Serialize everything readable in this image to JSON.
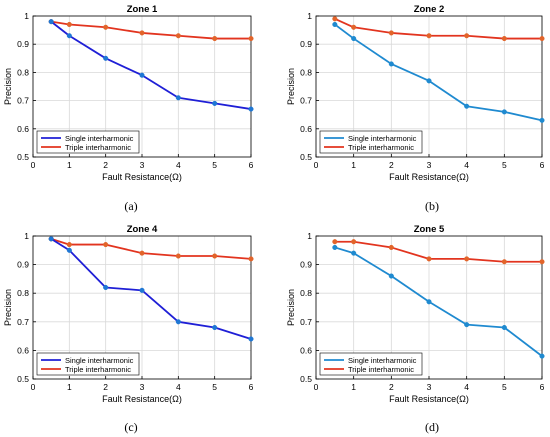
{
  "colors": {
    "single_ab": "#1f1fd6",
    "single_b": "#1f8ad0",
    "triple": "#e2341f",
    "marker_single_ab": "#1f77d4",
    "marker_single_b": "#1f8ad0",
    "marker_triple": "#e2642a",
    "grid": "#d9d9d9",
    "axis": "#000000"
  },
  "chart_data": [
    {
      "type": "line",
      "title": "Zone 1",
      "caption": "(a)",
      "xlabel": "Fault Resistance(Ω)",
      "ylabel": "Precision",
      "xlim": [
        0,
        6
      ],
      "ylim": [
        0.5,
        1
      ],
      "xticks": [
        "0",
        "1",
        "2",
        "3",
        "4",
        "5",
        "6"
      ],
      "yticks": [
        "0.5",
        "0.6",
        "0.7",
        "0.8",
        "0.9",
        "1"
      ],
      "grid": true,
      "legend": "bottom-left",
      "x": [
        0.5,
        1,
        2,
        3,
        4,
        5,
        6
      ],
      "series": [
        {
          "name": "Single interharmonic",
          "values": [
            0.98,
            0.93,
            0.85,
            0.79,
            0.71,
            0.69,
            0.67
          ]
        },
        {
          "name": "Triple interharmonic",
          "values": [
            0.98,
            0.97,
            0.96,
            0.94,
            0.93,
            0.92,
            0.92
          ]
        }
      ]
    },
    {
      "type": "line",
      "title": "Zone 2",
      "caption": "(b)",
      "xlabel": "Fault Resistance(Ω)",
      "ylabel": "Precision",
      "xlim": [
        0,
        6
      ],
      "ylim": [
        0.5,
        1
      ],
      "xticks": [
        "0",
        "1",
        "2",
        "3",
        "4",
        "5",
        "6"
      ],
      "yticks": [
        "0.5",
        "0.6",
        "0.7",
        "0.8",
        "0.9",
        "1"
      ],
      "grid": true,
      "legend": "bottom-left",
      "x": [
        0.5,
        1,
        2,
        3,
        4,
        5,
        6
      ],
      "series": [
        {
          "name": "Single interharmonic",
          "values": [
            0.97,
            0.92,
            0.83,
            0.77,
            0.68,
            0.66,
            0.63
          ]
        },
        {
          "name": "Triple interharmonic",
          "values": [
            0.99,
            0.96,
            0.94,
            0.93,
            0.93,
            0.92,
            0.92
          ]
        }
      ]
    },
    {
      "type": "line",
      "title": "Zone 4",
      "caption": "(c)",
      "xlabel": "Fault Resistance(Ω)",
      "ylabel": "Precision",
      "xlim": [
        0,
        6
      ],
      "ylim": [
        0.5,
        1
      ],
      "xticks": [
        "0",
        "1",
        "2",
        "3",
        "4",
        "5",
        "6"
      ],
      "yticks": [
        "0.5",
        "0.6",
        "0.7",
        "0.8",
        "0.9",
        "1"
      ],
      "grid": true,
      "legend": "bottom-left",
      "x": [
        0.5,
        1,
        2,
        3,
        4,
        5,
        6
      ],
      "series": [
        {
          "name": "Single interharmonic",
          "values": [
            0.99,
            0.95,
            0.82,
            0.81,
            0.7,
            0.68,
            0.64
          ]
        },
        {
          "name": "Triple interharmonic",
          "values": [
            0.99,
            0.97,
            0.97,
            0.94,
            0.93,
            0.93,
            0.92
          ]
        }
      ]
    },
    {
      "type": "line",
      "title": "Zone 5",
      "caption": "(d)",
      "xlabel": "Fault Resistance(Ω)",
      "ylabel": "Precision",
      "xlim": [
        0,
        6
      ],
      "ylim": [
        0.5,
        1
      ],
      "xticks": [
        "0",
        "1",
        "2",
        "3",
        "4",
        "5",
        "6"
      ],
      "yticks": [
        "0.5",
        "0.6",
        "0.7",
        "0.8",
        "0.9",
        "1"
      ],
      "grid": true,
      "legend": "bottom-left",
      "x": [
        0.5,
        1,
        2,
        3,
        4,
        5,
        6
      ],
      "series": [
        {
          "name": "Single interharmonic",
          "values": [
            0.96,
            0.94,
            0.86,
            0.77,
            0.69,
            0.68,
            0.58
          ]
        },
        {
          "name": "Triple interharmonic",
          "values": [
            0.98,
            0.98,
            0.96,
            0.92,
            0.92,
            0.91,
            0.91
          ]
        }
      ]
    }
  ]
}
